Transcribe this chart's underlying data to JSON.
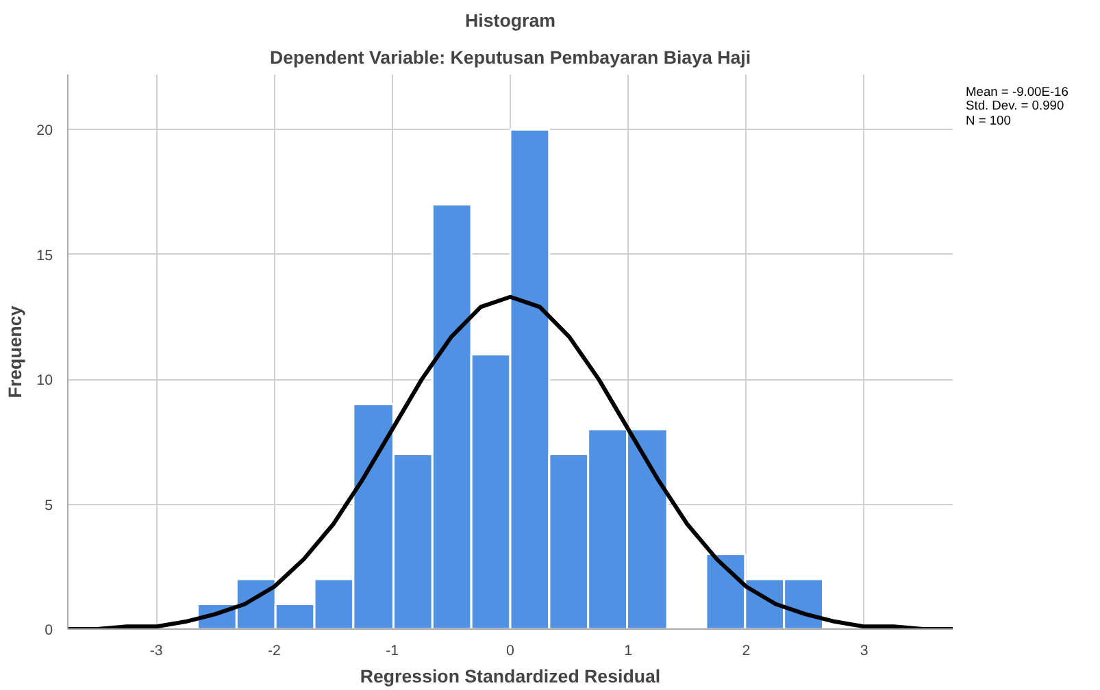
{
  "chart_data": {
    "type": "histogram",
    "title": "Histogram",
    "subtitle": "Dependent Variable: Keputusan Pembayaran Biaya Haji",
    "xlabel": "Regression Standardized Residual",
    "ylabel": "Frequency",
    "bins": [
      -2.65,
      -2.32,
      -1.99,
      -1.66,
      -1.33,
      -0.99,
      -0.66,
      -0.33,
      0.0,
      0.33,
      0.66,
      0.99,
      1.33,
      1.66,
      1.99,
      2.32,
      2.65
    ],
    "values": [
      1,
      2,
      1,
      2,
      9,
      7,
      17,
      11,
      20,
      7,
      8,
      8,
      0,
      3,
      2,
      2
    ],
    "color": "#5191e4",
    "series": [
      {
        "type": "line",
        "color": "#000000",
        "x": [
          -3.75,
          -3.5,
          -3.25,
          -3.0,
          -2.75,
          -2.5,
          -2.25,
          -2.0,
          -1.75,
          -1.5,
          -1.25,
          -1.0,
          -0.75,
          -0.5,
          -0.25,
          0.0,
          0.25,
          0.5,
          0.75,
          1.0,
          1.25,
          1.5,
          1.75,
          2.0,
          2.25,
          2.5,
          2.75,
          3.0,
          3.25,
          3.5,
          3.75
        ],
        "values": [
          0.0,
          0.0,
          0.1,
          0.1,
          0.3,
          0.6,
          1.0,
          1.7,
          2.8,
          4.2,
          6.0,
          8.0,
          10.0,
          11.7,
          12.9,
          13.3,
          12.9,
          11.7,
          10.0,
          8.0,
          6.0,
          4.2,
          2.8,
          1.7,
          1.0,
          0.6,
          0.3,
          0.1,
          0.1,
          0.0,
          0.0
        ]
      }
    ],
    "annotations": [
      "Mean = -9.00E-16",
      "Std. Dev. = 0.990",
      "N = 100"
    ],
    "xlim": [
      -3.75,
      3.75
    ],
    "ylim": [
      0,
      22.2
    ],
    "xticks": [
      -3,
      -2,
      -1,
      0,
      1,
      2,
      3
    ],
    "yticks": [
      0,
      5,
      10,
      15,
      20
    ],
    "grid": true
  }
}
